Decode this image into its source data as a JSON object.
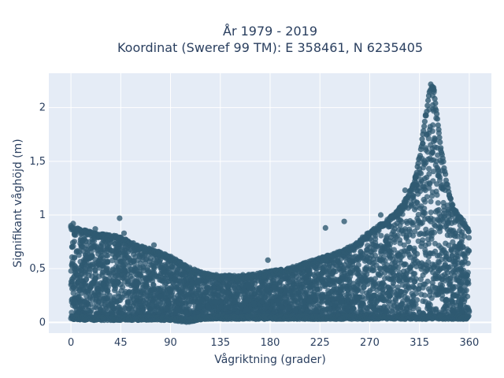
{
  "chart_data": {
    "type": "scatter",
    "title_line1": "År 1979 - 2019",
    "title_line2": "Koordinat (Sweref 99 TM): E 358461, N 6235405",
    "xlabel": "Vågriktning (grader)",
    "ylabel": "Signifikant våghöjd (m)",
    "xlim": [
      -20,
      380
    ],
    "ylim": [
      -0.1,
      2.32
    ],
    "x_ticks": [
      0,
      45,
      90,
      135,
      180,
      225,
      270,
      315,
      360
    ],
    "x_tick_labels": [
      "0",
      "45",
      "90",
      "135",
      "180",
      "225",
      "270",
      "315",
      "360"
    ],
    "y_ticks": [
      0,
      0.5,
      1,
      1.5,
      2
    ],
    "y_tick_labels": [
      "0",
      "0,5",
      "1",
      "1,5",
      "2"
    ],
    "grid": true,
    "legend": "none",
    "colors": {
      "marker": "#2f5a72",
      "plot_bg": "#e5ecf6",
      "grid": "#ffffff",
      "text": "#2a3f5f"
    },
    "envelope": {
      "description_points_are_estimated_from_dense_scatter": false,
      "x": [
        0,
        15,
        30,
        45,
        60,
        75,
        90,
        105,
        120,
        135,
        150,
        165,
        180,
        195,
        210,
        225,
        240,
        255,
        270,
        285,
        300,
        310,
        315,
        320,
        325,
        328,
        330,
        335,
        340,
        345,
        350,
        355,
        360
      ],
      "y_min": [
        0.03,
        0.02,
        0.02,
        0.02,
        0.02,
        0.02,
        0.02,
        0.0,
        0.03,
        0.03,
        0.03,
        0.03,
        0.03,
        0.03,
        0.03,
        0.03,
        0.03,
        0.03,
        0.03,
        0.03,
        0.03,
        0.03,
        0.03,
        0.03,
        0.03,
        0.03,
        0.03,
        0.03,
        0.03,
        0.03,
        0.03,
        0.03,
        0.03
      ],
      "y_max": [
        0.9,
        0.85,
        0.82,
        0.8,
        0.72,
        0.68,
        0.62,
        0.52,
        0.46,
        0.44,
        0.44,
        0.45,
        0.48,
        0.5,
        0.55,
        0.6,
        0.65,
        0.72,
        0.85,
        0.95,
        1.1,
        1.3,
        1.55,
        1.9,
        2.22,
        2.2,
        2.0,
        1.6,
        1.3,
        1.1,
        1.0,
        0.95,
        0.85
      ]
    },
    "outliers": [
      {
        "x": 0,
        "y": 0.9
      },
      {
        "x": 2,
        "y": 0.92
      },
      {
        "x": 22,
        "y": 0.87
      },
      {
        "x": 44,
        "y": 0.97
      },
      {
        "x": 48,
        "y": 0.83
      },
      {
        "x": 75,
        "y": 0.72
      },
      {
        "x": 178,
        "y": 0.58
      },
      {
        "x": 230,
        "y": 0.88
      },
      {
        "x": 247,
        "y": 0.94
      },
      {
        "x": 280,
        "y": 1.0
      },
      {
        "x": 302,
        "y": 1.23
      }
    ]
  }
}
